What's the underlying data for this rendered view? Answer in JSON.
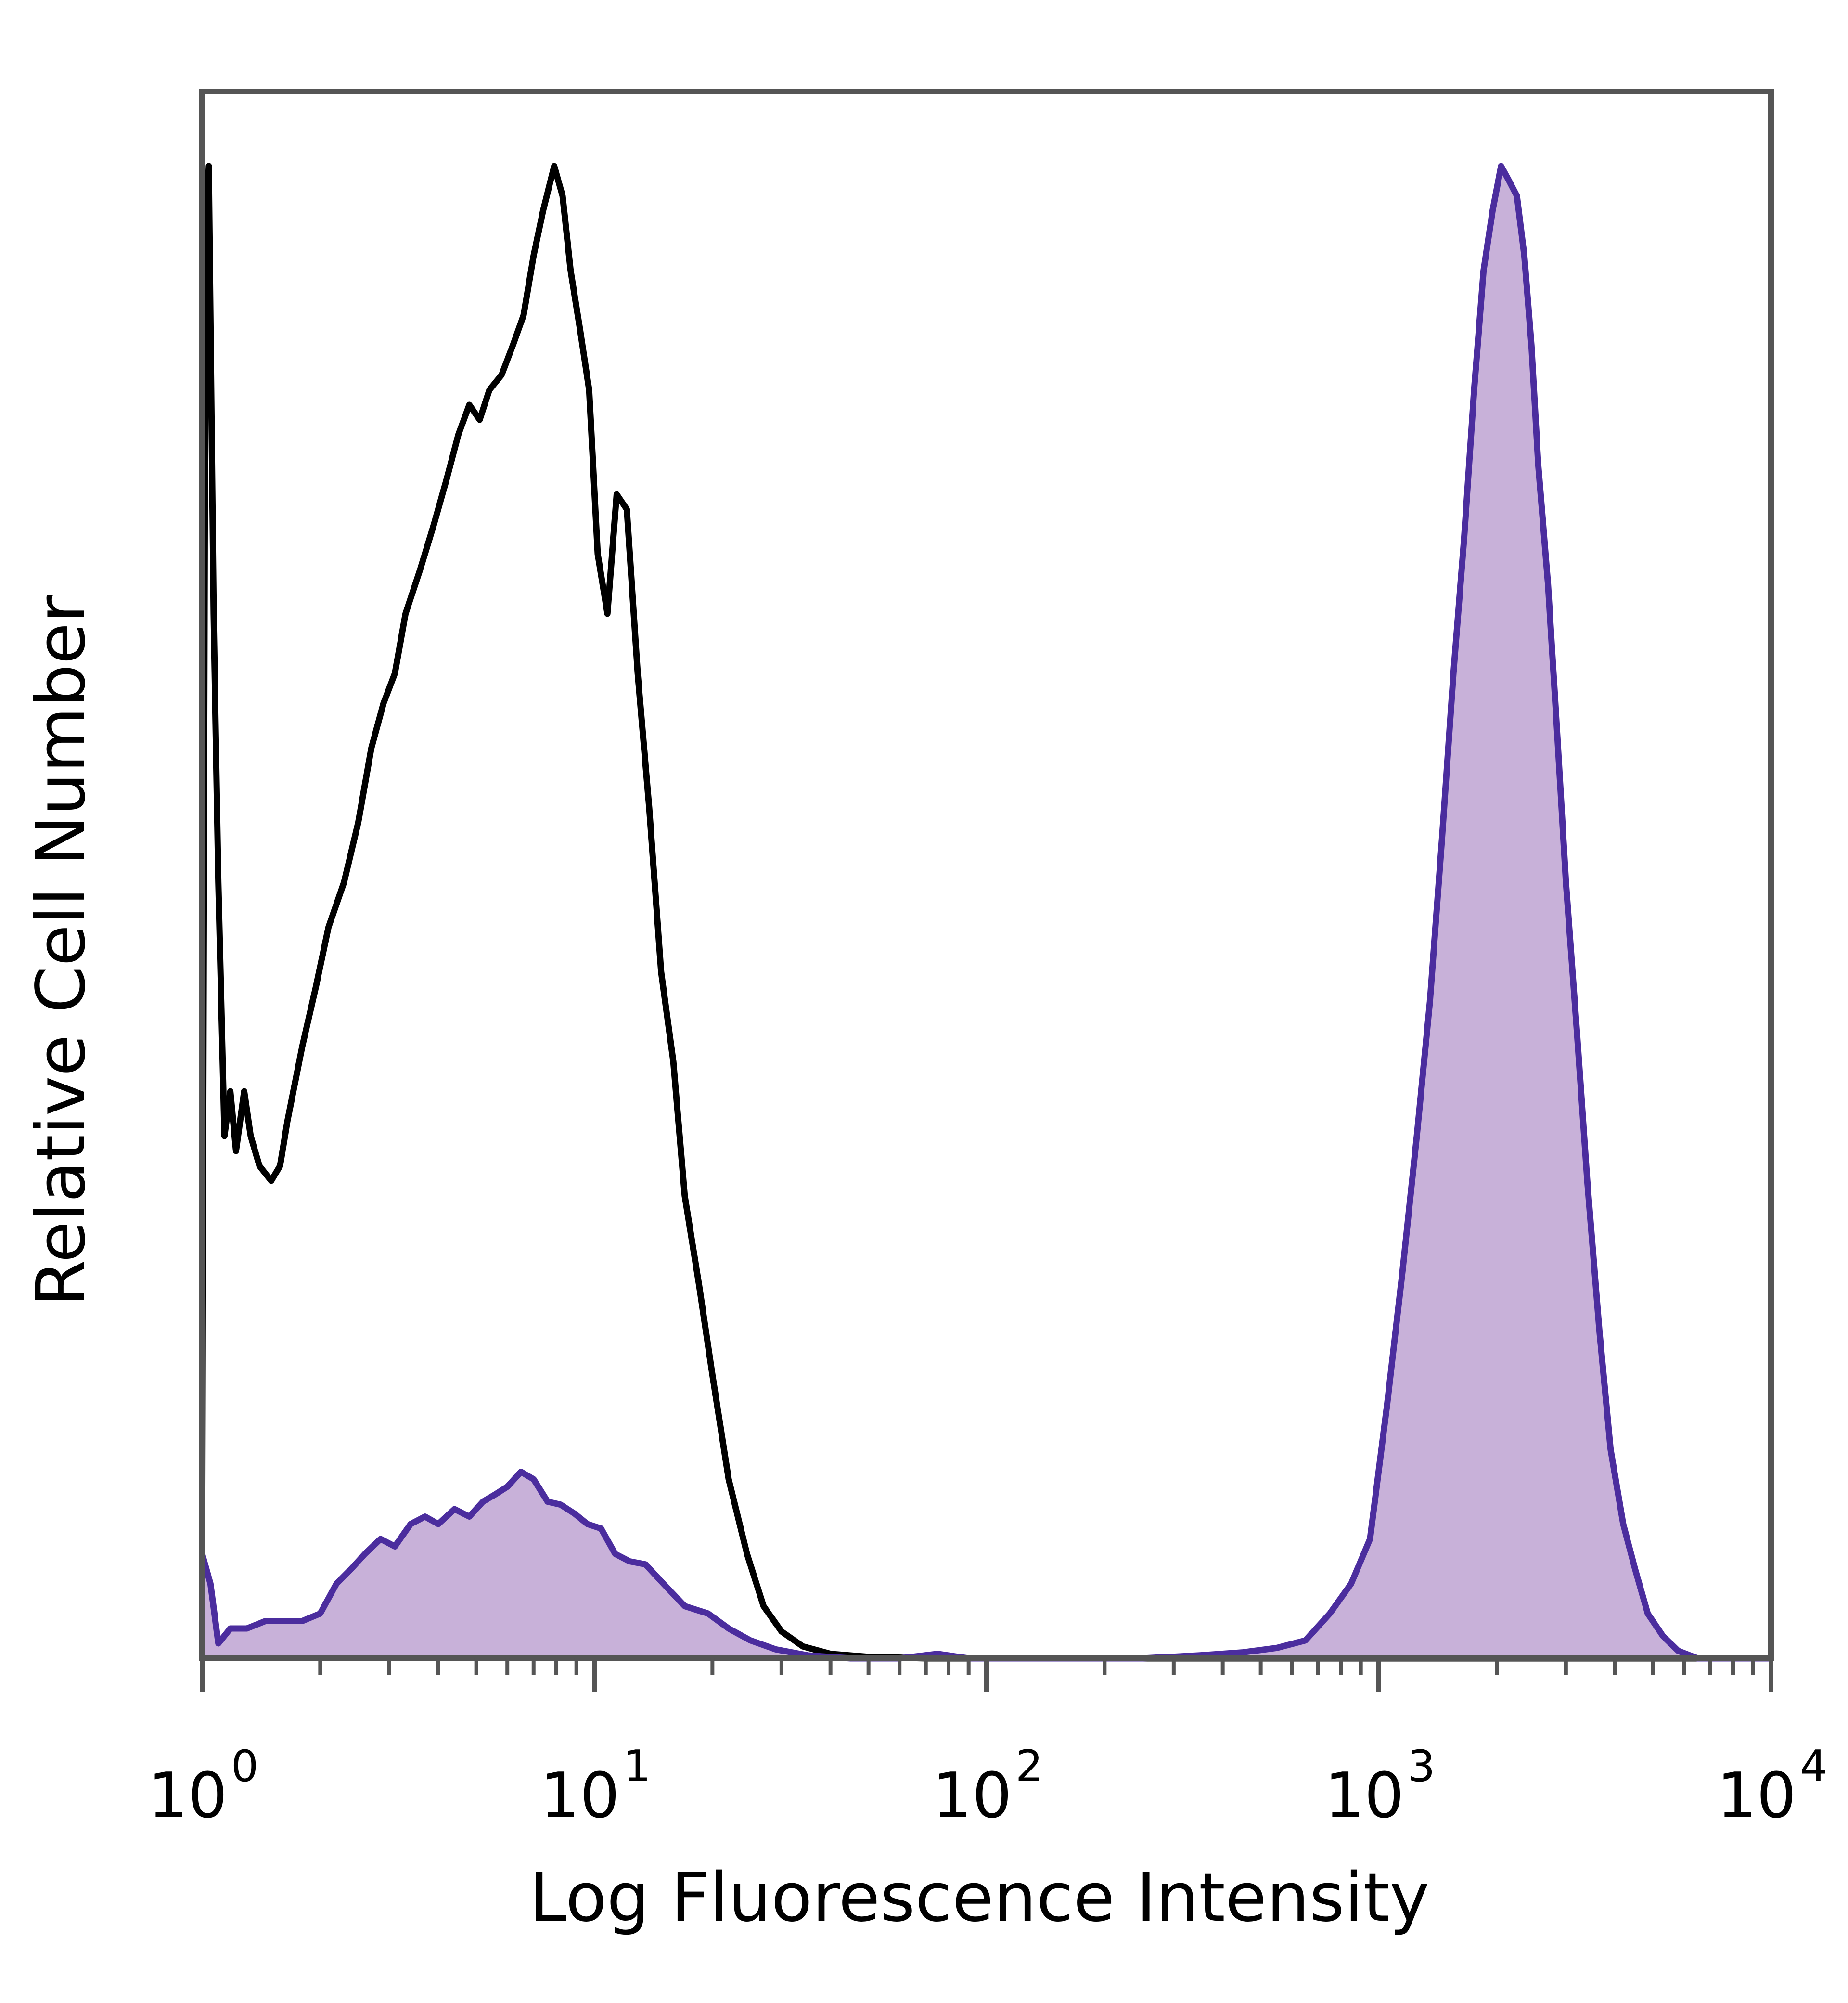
{
  "chart_data": {
    "type": "area",
    "title": "",
    "xlabel": "Log Fluorescence Intensity",
    "ylabel": "Relative Cell Number",
    "x_scale": "log",
    "xlim": [
      1,
      10000
    ],
    "ylim": [
      0,
      1.05
    ],
    "x_ticks": [
      {
        "value": 1,
        "base": "10",
        "exponent": "0"
      },
      {
        "value": 10,
        "base": "10",
        "exponent": "1"
      },
      {
        "value": 100,
        "base": "10",
        "exponent": "2"
      },
      {
        "value": 1000,
        "base": "10",
        "exponent": "3"
      },
      {
        "value": 10000,
        "base": "10",
        "exponent": "4"
      }
    ],
    "grid": false,
    "legend": "none",
    "series": [
      {
        "style": "line",
        "color": "#000000",
        "x": [
          1.0,
          1.02,
          1.04,
          1.07,
          1.1,
          1.14,
          1.18,
          1.22,
          1.28,
          1.33,
          1.4,
          1.5,
          1.58,
          1.65,
          1.8,
          1.95,
          2.1,
          2.3,
          2.5,
          2.7,
          2.9,
          3.1,
          3.3,
          3.6,
          3.9,
          4.2,
          4.5,
          4.8,
          5.1,
          5.4,
          5.8,
          6.2,
          6.6,
          7.0,
          7.4,
          7.9,
          8.3,
          8.7,
          9.2,
          9.7,
          10.2,
          10.8,
          11.4,
          12.1,
          12.9,
          13.8,
          14.8,
          15.9,
          17.0,
          18.5,
          20.0,
          22.0,
          24.5,
          27.0,
          30.0,
          34.0,
          40.0,
          50.0,
          70.0,
          100.0,
          300.0,
          1000.0,
          3000.0,
          10000.0
        ],
        "y": [
          0.05,
          0.95,
          1.0,
          0.7,
          0.52,
          0.35,
          0.38,
          0.34,
          0.38,
          0.35,
          0.33,
          0.32,
          0.33,
          0.36,
          0.41,
          0.45,
          0.49,
          0.52,
          0.56,
          0.61,
          0.64,
          0.66,
          0.7,
          0.73,
          0.76,
          0.79,
          0.82,
          0.84,
          0.83,
          0.85,
          0.86,
          0.88,
          0.9,
          0.94,
          0.97,
          1.0,
          0.98,
          0.93,
          0.89,
          0.85,
          0.74,
          0.7,
          0.78,
          0.77,
          0.66,
          0.57,
          0.46,
          0.4,
          0.31,
          0.25,
          0.19,
          0.12,
          0.07,
          0.035,
          0.018,
          0.008,
          0.003,
          0.001,
          0.0,
          0.0,
          0.0,
          0.0,
          0.0,
          0.0
        ]
      },
      {
        "style": "filled",
        "color": "#4b2d9e",
        "fill": "#c8b1d9",
        "x": [
          1.0,
          1.05,
          1.1,
          1.18,
          1.3,
          1.45,
          1.6,
          1.8,
          2.0,
          2.2,
          2.4,
          2.6,
          2.85,
          3.1,
          3.4,
          3.7,
          4.0,
          4.4,
          4.8,
          5.2,
          5.6,
          6.0,
          6.5,
          7.0,
          7.6,
          8.2,
          8.9,
          9.6,
          10.4,
          11.3,
          12.3,
          13.5,
          15.0,
          17.0,
          19.5,
          22.0,
          25.0,
          29.0,
          35.0,
          45.0,
          60.0,
          75.0,
          90.0,
          150.0,
          250.0,
          350.0,
          450.0,
          550.0,
          650.0,
          750.0,
          850.0,
          950.0,
          1050.0,
          1150.0,
          1250.0,
          1350.0,
          1450.0,
          1550.0,
          1650.0,
          1750.0,
          1850.0,
          1950.0,
          2050.0,
          2150.0,
          2250.0,
          2350.0,
          2450.0,
          2550.0,
          2700.0,
          2850.0,
          3000.0,
          3200.0,
          3400.0,
          3650.0,
          3900.0,
          4200.0,
          4500.0,
          4850.0,
          5300.0,
          5800.0,
          6500.0,
          10000.0
        ],
        "y": [
          0.07,
          0.05,
          0.01,
          0.02,
          0.02,
          0.025,
          0.025,
          0.025,
          0.03,
          0.05,
          0.06,
          0.07,
          0.08,
          0.075,
          0.09,
          0.095,
          0.09,
          0.1,
          0.095,
          0.105,
          0.11,
          0.115,
          0.125,
          0.12,
          0.105,
          0.103,
          0.097,
          0.09,
          0.087,
          0.07,
          0.065,
          0.063,
          0.05,
          0.035,
          0.03,
          0.02,
          0.012,
          0.006,
          0.002,
          0.0,
          0.0,
          0.003,
          0.0,
          0.0,
          0.0,
          0.002,
          0.004,
          0.007,
          0.012,
          0.03,
          0.05,
          0.08,
          0.17,
          0.26,
          0.35,
          0.44,
          0.55,
          0.66,
          0.75,
          0.85,
          0.93,
          0.97,
          1.0,
          0.99,
          0.98,
          0.94,
          0.88,
          0.8,
          0.72,
          0.62,
          0.52,
          0.42,
          0.32,
          0.22,
          0.14,
          0.09,
          0.06,
          0.03,
          0.015,
          0.005,
          0.0,
          0.0
        ]
      }
    ]
  }
}
